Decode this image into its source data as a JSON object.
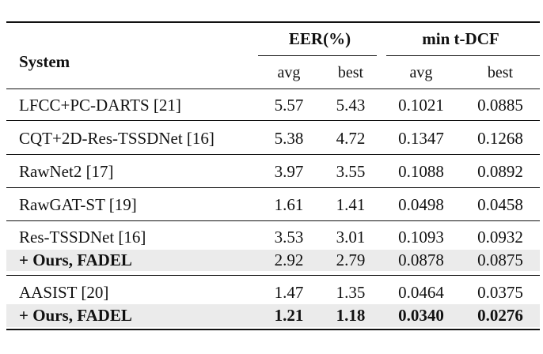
{
  "header": {
    "system_label": "System",
    "eer_label": "EER(%)",
    "tdcf_label": "min t-DCF",
    "sub_avg": "avg",
    "sub_best": "best"
  },
  "rows": [
    {
      "system": "LFCC+PC-DARTS [21]",
      "eer_avg": "5.57",
      "eer_best": "5.43",
      "tdcf_avg": "0.1021",
      "tdcf_best": "0.0885"
    },
    {
      "system": "CQT+2D-Res-TSSDNet [16]",
      "eer_avg": "5.38",
      "eer_best": "4.72",
      "tdcf_avg": "0.1347",
      "tdcf_best": "0.1268"
    },
    {
      "system": "RawNet2 [17]",
      "eer_avg": "3.97",
      "eer_best": "3.55",
      "tdcf_avg": "0.1088",
      "tdcf_best": "0.0892"
    },
    {
      "system": "RawGAT-ST [19]",
      "eer_avg": "1.61",
      "eer_best": "1.41",
      "tdcf_avg": "0.0498",
      "tdcf_best": "0.0458"
    },
    {
      "system": "Res-TSSDNet [16]",
      "eer_avg": "3.53",
      "eer_best": "3.01",
      "tdcf_avg": "0.1093",
      "tdcf_best": "0.0932"
    },
    {
      "system": "+ Ours, FADEL",
      "eer_avg": "2.92",
      "eer_best": "2.79",
      "tdcf_avg": "0.0878",
      "tdcf_best": "0.0875"
    },
    {
      "system": "AASIST [20]",
      "eer_avg": "1.47",
      "eer_best": "1.35",
      "tdcf_avg": "0.0464",
      "tdcf_best": "0.0375"
    },
    {
      "system": "+ Ours, FADEL",
      "eer_avg": "1.21",
      "eer_best": "1.18",
      "tdcf_avg": "0.0340",
      "tdcf_best": "0.0276"
    }
  ]
}
